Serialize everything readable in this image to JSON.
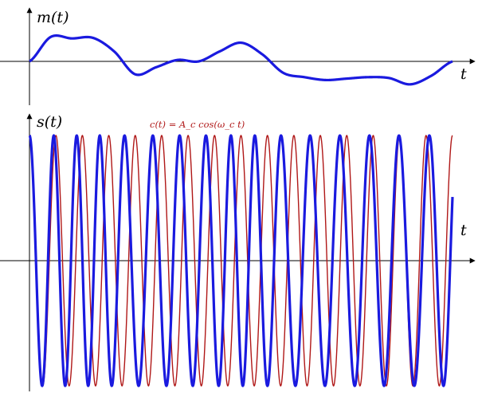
{
  "top_plot": {
    "y_label": "m(t)",
    "x_label": "t"
  },
  "bottom_plot": {
    "y_label": "s(t)",
    "x_label": "t",
    "carrier_label": "c(t) = A_c cos(ω_c t)"
  },
  "colors": {
    "axis": "#000000",
    "signal": "#1a1adf",
    "carrier": "#b01818"
  },
  "chart_data": [
    {
      "type": "line",
      "series": [
        {
          "x": [
            0,
            0.05,
            0.1,
            0.15,
            0.2,
            0.25,
            0.3,
            0.35,
            0.4,
            0.45,
            0.5,
            0.55,
            0.6,
            0.65,
            0.7,
            0.75,
            0.8,
            0.85,
            0.9,
            0.95,
            1.0
          ],
          "y": [
            0,
            0.85,
            0.8,
            0.82,
            0.35,
            -0.45,
            -0.2,
            0.05,
            0.0,
            0.35,
            0.65,
            0.25,
            -0.4,
            -0.55,
            -0.65,
            -0.6,
            -0.55,
            -0.58,
            -0.8,
            -0.5,
            0
          ]
        }
      ]
    },
    {
      "type": "line",
      "series": [
        {
          "cycles": 16,
          "deviation": 0.18,
          "values_from": "m(t)"
        },
        {
          "cycles": 16,
          "values_from": "c(t)"
        }
      ]
    }
  ]
}
